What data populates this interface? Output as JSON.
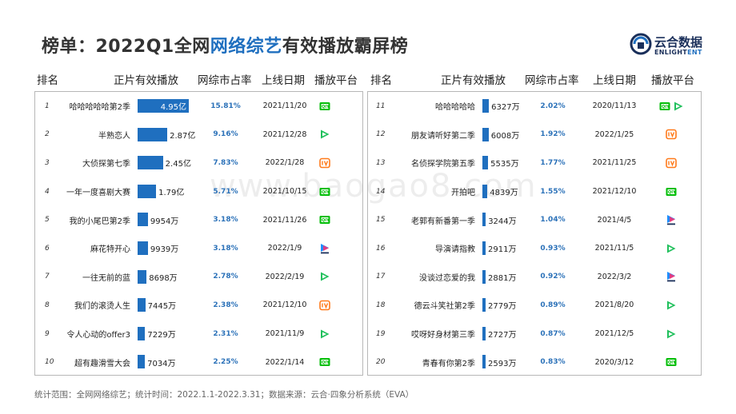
{
  "title": {
    "prefix": "榜单：2022Q1全网",
    "highlight": "网络综艺",
    "suffix": "有效播放霸屏榜"
  },
  "logo": {
    "name_cn": "云合数据",
    "name_en_a": "ENLIGHT",
    "name_en_b": "ENT"
  },
  "watermark": "www.baogao8.com",
  "headers": {
    "rank": "排名",
    "plays": "正片有效播放",
    "share": "网综市占率",
    "date": "上线日期",
    "platform": "播放平台"
  },
  "chart_data": {
    "type": "bar",
    "unit_note": "正片有效播放",
    "categories": [
      "哈哈哈哈哈第2季",
      "半熟恋人",
      "大侦探第七季",
      "一年一度喜剧大赛",
      "我的小尾巴第2季",
      "麻花特开心",
      "一往无前的蓝",
      "我们的滚烫人生",
      "令人心动的offer3",
      "超有趣滑雪大会",
      "哈哈哈哈哈",
      "朋友请听好第二季",
      "名侦探学院第五季",
      "开拍吧",
      "老郭有新番第一季",
      "导演请指教",
      "没谈过恋爱的我",
      "德云斗笑社第2季",
      "哎呀好身材第三季",
      "青春有你第2季"
    ],
    "values_wan": [
      49500,
      28700,
      24500,
      17900,
      9954,
      9939,
      8698,
      7445,
      7229,
      7034,
      6327,
      6008,
      5535,
      4839,
      3244,
      2911,
      2881,
      2779,
      2727,
      2593
    ]
  },
  "rows_left": [
    {
      "rank": "1",
      "name": "哈哈哈哈哈第2季",
      "plays": "4.95亿",
      "share": "15.81%",
      "date": "2021/11/20",
      "platform": "iqiyi",
      "value": 49500
    },
    {
      "rank": "2",
      "name": "半熟恋人",
      "plays": "2.87亿",
      "share": "9.16%",
      "date": "2021/12/28",
      "platform": "tencent",
      "value": 28700
    },
    {
      "rank": "3",
      "name": "大侦探第七季",
      "plays": "2.45亿",
      "share": "7.83%",
      "date": "2022/1/28",
      "platform": "mango",
      "value": 24500
    },
    {
      "rank": "4",
      "name": "一年一度喜剧大赛",
      "plays": "1.79亿",
      "share": "5.71%",
      "date": "2021/10/15",
      "platform": "iqiyi",
      "value": 17900
    },
    {
      "rank": "5",
      "name": "我的小尾巴第2季",
      "plays": "9954万",
      "share": "3.18%",
      "date": "2021/11/26",
      "platform": "iqiyi",
      "value": 9954
    },
    {
      "rank": "6",
      "name": "麻花特开心",
      "plays": "9939万",
      "share": "3.18%",
      "date": "2022/1/9",
      "platform": "youku",
      "value": 9939
    },
    {
      "rank": "7",
      "name": "一往无前的蓝",
      "plays": "8698万",
      "share": "2.78%",
      "date": "2022/2/19",
      "platform": "tencent",
      "value": 8698
    },
    {
      "rank": "8",
      "name": "我们的滚烫人生",
      "plays": "7445万",
      "share": "2.38%",
      "date": "2021/12/10",
      "platform": "mango",
      "value": 7445
    },
    {
      "rank": "9",
      "name": "令人心动的offer3",
      "plays": "7229万",
      "share": "2.31%",
      "date": "2021/11/9",
      "platform": "tencent",
      "value": 7229
    },
    {
      "rank": "10",
      "name": "超有趣滑雪大会",
      "plays": "7034万",
      "share": "2.25%",
      "date": "2022/1/14",
      "platform": "iqiyi",
      "value": 7034
    }
  ],
  "rows_right": [
    {
      "rank": "11",
      "name": "哈哈哈哈哈",
      "plays": "6327万",
      "share": "2.02%",
      "date": "2020/11/13",
      "platform": "iqiyi+tencent",
      "value": 6327
    },
    {
      "rank": "12",
      "name": "朋友请听好第二季",
      "plays": "6008万",
      "share": "1.92%",
      "date": "2022/1/25",
      "platform": "mango",
      "value": 6008
    },
    {
      "rank": "13",
      "name": "名侦探学院第五季",
      "plays": "5535万",
      "share": "1.77%",
      "date": "2021/11/25",
      "platform": "mango",
      "value": 5535
    },
    {
      "rank": "14",
      "name": "开拍吧",
      "plays": "4839万",
      "share": "1.55%",
      "date": "2021/12/10",
      "platform": "iqiyi",
      "value": 4839
    },
    {
      "rank": "15",
      "name": "老郭有新番第一季",
      "plays": "3244万",
      "share": "1.04%",
      "date": "2021/4/5",
      "platform": "youku",
      "value": 3244
    },
    {
      "rank": "16",
      "name": "导演请指教",
      "plays": "2911万",
      "share": "0.93%",
      "date": "2021/11/5",
      "platform": "tencent",
      "value": 2911
    },
    {
      "rank": "17",
      "name": "没谈过恋爱的我",
      "plays": "2881万",
      "share": "0.92%",
      "date": "2022/3/2",
      "platform": "youku",
      "value": 2881
    },
    {
      "rank": "18",
      "name": "德云斗笑社第2季",
      "plays": "2779万",
      "share": "0.89%",
      "date": "2021/8/20",
      "platform": "tencent",
      "value": 2779
    },
    {
      "rank": "19",
      "name": "哎呀好身材第三季",
      "plays": "2727万",
      "share": "0.87%",
      "date": "2021/12/5",
      "platform": "tencent",
      "value": 2727
    },
    {
      "rank": "20",
      "name": "青春有你第2季",
      "plays": "2593万",
      "share": "0.83%",
      "date": "2020/3/12",
      "platform": "iqiyi",
      "value": 2593
    }
  ],
  "footer": "统计范围：全网网络综艺；统计时间：2022.1.1-2022.3.31；数据来源：云合·四象分析系统（EVA）",
  "colors": {
    "accent": "#1f6fbf",
    "share_text": "#2c72b9",
    "iqiyi": "#00be06",
    "tencent": "#20c05c",
    "mango": "#ff7a1a",
    "youku": "#1f8fff"
  }
}
